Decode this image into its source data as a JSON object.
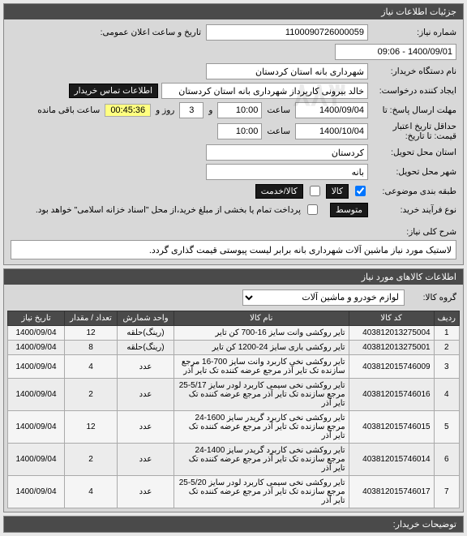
{
  "panels": {
    "need_info": "جزئیات اطلاعات نیاز"
  },
  "form": {
    "need_no_label": "شماره نیاز:",
    "need_no": "1100090726000059",
    "announce_label": "تاریخ و ساعت اعلان عمومی:",
    "announce_value": "1400/09/01 - 09:06",
    "buyer_label": "نام دستگاه خریدار:",
    "buyer_value": "شهرداری بانه استان کردستان",
    "creator_label": "ایجاد کننده درخواست:",
    "creator_value": "خالد بیرونی کارپرداز شهرداری بانه استان کردستان",
    "contact_btn": "اطلاعات تماس خریدار",
    "deadline_label": "مهلت ارسال پاسخ: تا",
    "deadline_date": "1400/09/04",
    "time_label": "ساعت",
    "deadline_time": "10:00",
    "and_label": "و",
    "days_val": "3",
    "days_label": "روز و",
    "timer": "00:45:36",
    "timer_suffix": "ساعت باقی مانده",
    "validity_label": "حداقل تاریخ اعتبار قیمت: تا تاریخ:",
    "validity_date": "1400/10/04",
    "validity_time": "10:00",
    "province_label": "استان محل تحویل:",
    "province_value": "کردستان",
    "city_label": "شهر محل تحویل:",
    "city_value": "بانه",
    "budget_label": "طبقه بندی موضوعی:",
    "budget_goods": "کالا",
    "budget_service": "کالا/خدمت",
    "purchase_type_label": "نوع فرآیند خرید:",
    "purchase_type_value": "متوسط",
    "purchase_note": "پرداخت تمام یا بخشی از مبلغ خرید،از محل \"اسناد خزانه اسلامی\" خواهد بود.",
    "desc_label": "شرح کلی نیاز:",
    "desc_value": "لاستیک مورد نیاز ماشین آلات شهرداری بانه برابر لیست پیوستی قیمت گذاری گردد."
  },
  "goods_panel": {
    "header": "اطلاعات کالاهای مورد نیاز",
    "group_label": "گروه کالا:",
    "group_value": "لوازم خودرو و ماشین آلات"
  },
  "table": {
    "headers": {
      "idx": "ردیف",
      "code": "کد کالا",
      "name": "نام کالا",
      "unit": "واحد شمارش",
      "qty": "تعداد / مقدار",
      "date": "تاریخ نیاز"
    },
    "rows": [
      {
        "idx": "1",
        "code": "403812013275004",
        "name": "تایر روکشی وانت سایز 16-700 کن تایر",
        "unit": "(رینگ)حلقه",
        "qty": "12",
        "date": "1400/09/04"
      },
      {
        "idx": "2",
        "code": "403812013275001",
        "name": "تایر روکشی باری سایز 24-1200 کن تایر",
        "unit": "(رینگ)حلقه",
        "qty": "8",
        "date": "1400/09/04"
      },
      {
        "idx": "3",
        "code": "403812015746009",
        "name": "تایر روکشی نخی کاربرد وانت سایز 700-16 مرجع سازنده تک تایر آذر مرجع عرضه کننده تک تایر آذر",
        "unit": "عدد",
        "qty": "4",
        "date": "1400/09/04"
      },
      {
        "idx": "4",
        "code": "403812015746016",
        "name": "تایر روکشی نخی سیمی کاربرد لودر سایز 5/17-25 مرجع سازنده تک تایر آذر مرجع عرضه کننده تک تایر آذر",
        "unit": "عدد",
        "qty": "2",
        "date": "1400/09/04"
      },
      {
        "idx": "5",
        "code": "403812015746015",
        "name": "تایر روکشی نخی کاربرد گریدر سایز 1600-24 مرجع سازنده تک تایر آذر مرجع عرضه کننده تک تایر آذر",
        "unit": "عدد",
        "qty": "12",
        "date": "1400/09/04"
      },
      {
        "idx": "6",
        "code": "403812015746014",
        "name": "تایر روکشی نخی کاربرد گریدر سایز 1400-24 مرجع سازنده تک تایر آذر مرجع عرضه کننده تک تایر آذر",
        "unit": "عدد",
        "qty": "2",
        "date": "1400/09/04"
      },
      {
        "idx": "7",
        "code": "403812015746017",
        "name": "تایر روکشی نخی سیمی کاربرد لودر سایز 5/20-25 مرجع سازنده تک تایر آذر مرجع عرضه کننده تک تایر آذر",
        "unit": "عدد",
        "qty": "4",
        "date": "1400/09/04"
      }
    ]
  },
  "buyer_notes_header": "توضیحات خریدار:"
}
